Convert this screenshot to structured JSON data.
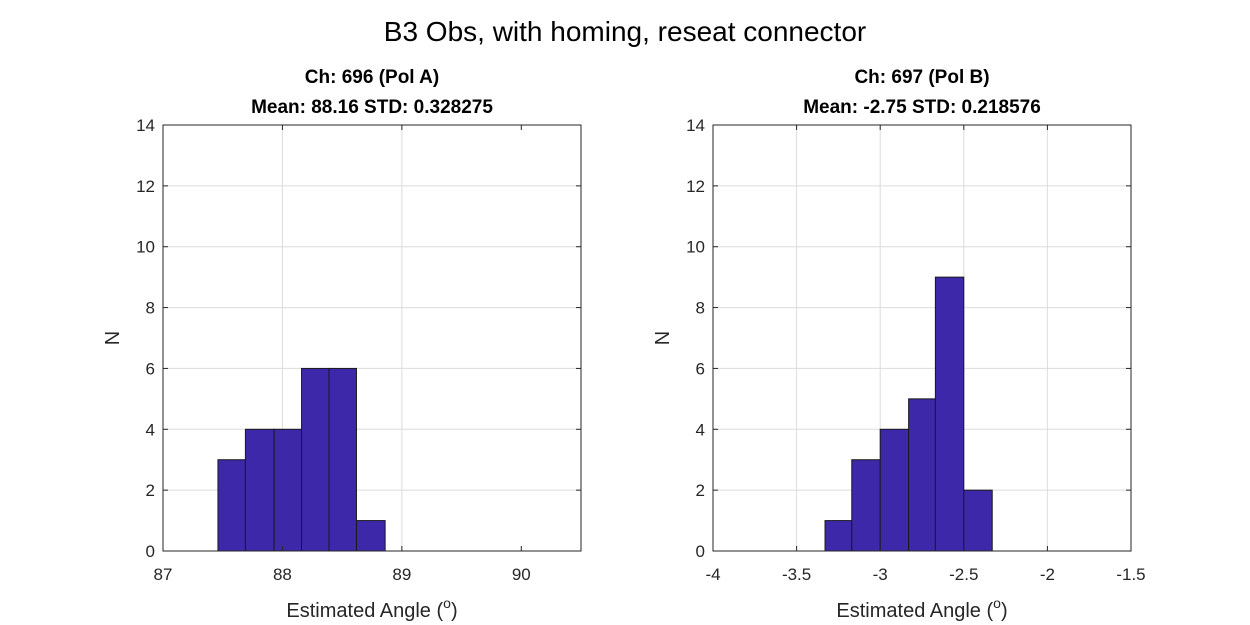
{
  "figure": {
    "title": "B3 Obs, with homing, reseat connector"
  },
  "colors": {
    "bar_fill": "#3e28aa",
    "bar_edge": "#1a1a1a",
    "grid": "#dcdcdc",
    "axis": "#262626"
  },
  "chart_data": [
    {
      "type": "bar",
      "title_line1": "Ch: 696 (Pol A)",
      "title_line2": "Mean: 88.16 STD: 0.328275",
      "xlabel": "Estimated Angle (",
      "xlabel_sup": "o",
      "xlabel_end": ")",
      "ylabel": "N",
      "xlim": [
        87,
        90.5
      ],
      "ylim": [
        0,
        14
      ],
      "xticks": [
        87,
        88,
        89,
        90
      ],
      "xtick_labels": [
        "87",
        "88",
        "89",
        "90"
      ],
      "yticks": [
        0,
        2,
        4,
        6,
        8,
        10,
        12,
        14
      ],
      "ytick_labels": [
        "0",
        "2",
        "4",
        "6",
        "8",
        "10",
        "12",
        "14"
      ],
      "grid": true,
      "bins": [
        {
          "x0": 87.46,
          "x1": 87.69,
          "count": 3
        },
        {
          "x0": 87.69,
          "x1": 87.93,
          "count": 4
        },
        {
          "x0": 87.93,
          "x1": 88.16,
          "count": 4
        },
        {
          "x0": 88.16,
          "x1": 88.39,
          "count": 6
        },
        {
          "x0": 88.39,
          "x1": 88.62,
          "count": 6
        },
        {
          "x0": 88.62,
          "x1": 88.86,
          "count": 1
        }
      ]
    },
    {
      "type": "bar",
      "title_line1": "Ch: 697 (Pol B)",
      "title_line2": "Mean: -2.75 STD: 0.218576",
      "xlabel": "Estimated Angle (",
      "xlabel_sup": "o",
      "xlabel_end": ")",
      "ylabel": "N",
      "xlim": [
        -4,
        -1.5
      ],
      "ylim": [
        0,
        14
      ],
      "xticks": [
        -4,
        -3.5,
        -3,
        -2.5,
        -2,
        -1.5
      ],
      "xtick_labels": [
        "-4",
        "-3.5",
        "-3",
        "-2.5",
        "-2",
        "-1.5"
      ],
      "yticks": [
        0,
        2,
        4,
        6,
        8,
        10,
        12,
        14
      ],
      "ytick_labels": [
        "0",
        "2",
        "4",
        "6",
        "8",
        "10",
        "12",
        "14"
      ],
      "grid": true,
      "bins": [
        {
          "x0": -3.33,
          "x1": -3.17,
          "count": 1
        },
        {
          "x0": -3.17,
          "x1": -3.0,
          "count": 3
        },
        {
          "x0": -3.0,
          "x1": -2.83,
          "count": 4
        },
        {
          "x0": -2.83,
          "x1": -2.67,
          "count": 5
        },
        {
          "x0": -2.67,
          "x1": -2.5,
          "count": 9
        },
        {
          "x0": -2.5,
          "x1": -2.33,
          "count": 2
        }
      ]
    }
  ]
}
